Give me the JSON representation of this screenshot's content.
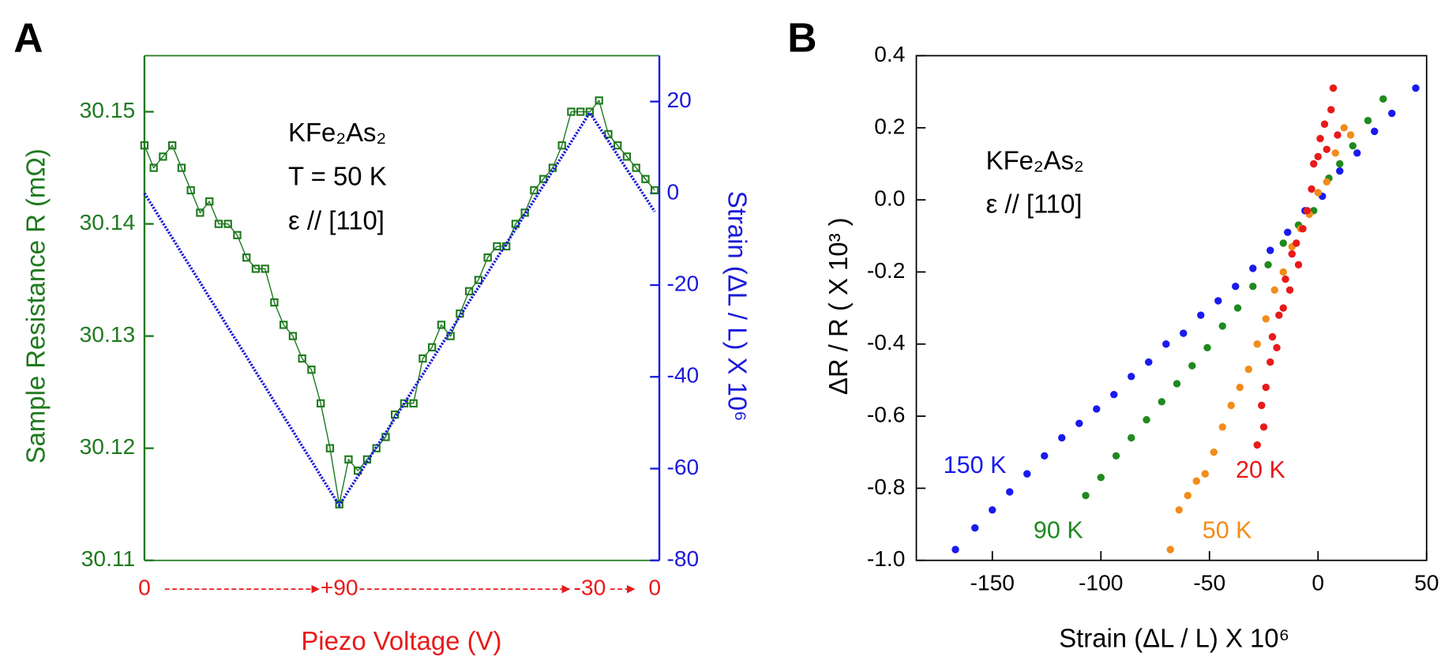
{
  "chart_data": [
    {
      "type": "line",
      "panel": "A",
      "ylabel": "Sample Resistance R (mΩ)",
      "y2label": "Strain (ΔL / L) X 10⁶",
      "xlabel": "Piezo Voltage (V)",
      "annotations": [
        "KFe₂As₂",
        "T = 50 K",
        "ε // [110]"
      ],
      "categories": [
        "0",
        null,
        null,
        null,
        null,
        null,
        null,
        null,
        null,
        null,
        null,
        null,
        null,
        null,
        null,
        null,
        null,
        null,
        null,
        null,
        null,
        "+90",
        null,
        null,
        null,
        null,
        null,
        null,
        null,
        null,
        null,
        null,
        null,
        null,
        null,
        null,
        null,
        null,
        null,
        null,
        null,
        null,
        null,
        null,
        null,
        null,
        null,
        null,
        "-30",
        null,
        null,
        null,
        null,
        null,
        null,
        "0"
      ],
      "series": [
        {
          "color": "#1f7a1f",
          "marker": "square",
          "values": [
            30.147,
            30.145,
            30.146,
            30.147,
            30.145,
            30.143,
            30.141,
            30.142,
            30.14,
            30.14,
            30.139,
            30.137,
            30.136,
            30.136,
            30.133,
            30.131,
            30.13,
            30.128,
            30.127,
            30.124,
            30.12,
            30.115,
            30.119,
            30.118,
            30.119,
            30.12,
            30.121,
            30.123,
            30.124,
            30.124,
            30.128,
            30.129,
            30.131,
            30.13,
            30.132,
            30.134,
            30.135,
            30.137,
            30.138,
            30.138,
            30.14,
            30.141,
            30.143,
            30.144,
            30.145,
            30.147,
            30.15,
            30.15,
            30.15,
            30.151,
            30.148,
            30.147,
            30.146,
            30.145,
            30.144,
            30.143
          ]
        },
        {
          "color": "#1a1adb",
          "axis": "y2",
          "dotted": true,
          "values": [
            0,
            -3.2,
            -6.5,
            -9.7,
            -13,
            -16.2,
            -19.4,
            -22.7,
            -25.9,
            -29.2,
            -32.4,
            -35.6,
            -38.9,
            -42.1,
            -45.4,
            -48.6,
            -51.8,
            -55.1,
            -58.3,
            -61.6,
            -64.8,
            -68,
            -64.8,
            -61.7,
            -58.5,
            -55.3,
            -52.2,
            -49,
            -45.8,
            -42.6,
            -39.5,
            -36.3,
            -33.1,
            -30,
            -26.8,
            -23.6,
            -20.5,
            -17.3,
            -14.1,
            -11,
            -7.8,
            -4.6,
            -1.5,
            1.7,
            4.9,
            8,
            11.2,
            14.4,
            17.6,
            14.5,
            11.4,
            8.3,
            5.2,
            2.2,
            -0.9,
            -4
          ]
        }
      ],
      "ylim": [
        30.11,
        30.155
      ],
      "yticks": [
        30.11,
        30.12,
        30.13,
        30.14,
        30.15
      ],
      "y2lim": [
        -80,
        30
      ],
      "y2ticks": [
        -80,
        -60,
        -40,
        -20,
        0,
        20
      ]
    },
    {
      "type": "scatter",
      "panel": "B",
      "xlabel": "Strain (ΔL / L) X 10⁶",
      "ylabel": "ΔR / R ( X 10³ )",
      "annotations": [
        "KFe₂As₂",
        "ε // [110]"
      ],
      "series": [
        {
          "name": "150 K",
          "color": "#1a1aee",
          "x": [
            -167,
            -158,
            -150,
            -142,
            -134,
            -126,
            -118,
            -110,
            -102,
            -94,
            -86,
            -78,
            -70,
            -62,
            -54,
            -46,
            -38,
            -30,
            -22,
            -14,
            -6,
            2,
            10,
            18,
            26,
            34,
            45
          ],
          "values": [
            -0.97,
            -0.91,
            -0.86,
            -0.81,
            -0.76,
            -0.71,
            -0.66,
            -0.62,
            -0.58,
            -0.54,
            -0.49,
            -0.45,
            -0.4,
            -0.37,
            -0.32,
            -0.28,
            -0.24,
            -0.19,
            -0.14,
            -0.09,
            -0.03,
            0.01,
            0.08,
            0.13,
            0.19,
            0.24,
            0.31
          ]
        },
        {
          "name": "90 K",
          "color": "#1f8a1f",
          "x": [
            -107,
            -100,
            -93,
            -86,
            -79,
            -72,
            -65,
            -58,
            -51,
            -44,
            -37,
            -30,
            -23,
            -16,
            -9,
            -2,
            5,
            10,
            16,
            23,
            30
          ],
          "values": [
            -0.82,
            -0.77,
            -0.71,
            -0.66,
            -0.61,
            -0.56,
            -0.51,
            -0.46,
            -0.41,
            -0.35,
            -0.3,
            -0.24,
            -0.18,
            -0.12,
            -0.07,
            -0.03,
            0.06,
            0.1,
            0.15,
            0.22,
            0.28
          ]
        },
        {
          "name": "50 K",
          "color": "#f28c1a",
          "x": [
            -68,
            -64,
            -60,
            -56,
            -52,
            -48,
            -44,
            -40,
            -36,
            -32,
            -28,
            -24,
            -20,
            -16,
            -12,
            -8,
            -4,
            0,
            4,
            8,
            12,
            15
          ],
          "values": [
            -0.97,
            -0.86,
            -0.82,
            -0.78,
            -0.76,
            -0.7,
            -0.63,
            -0.57,
            -0.52,
            -0.47,
            -0.4,
            -0.33,
            -0.25,
            -0.2,
            -0.13,
            -0.08,
            -0.04,
            0.02,
            0.05,
            0.13,
            0.2,
            0.18
          ]
        },
        {
          "name": "20 K",
          "color": "#e81a1a",
          "x": [
            -28,
            -26,
            -25,
            -24,
            -22,
            -21,
            -19,
            -18,
            -16,
            -15,
            -13,
            -12,
            -10,
            -9,
            -7,
            -5,
            -3,
            -2,
            0,
            1,
            3,
            4,
            6,
            7,
            9
          ],
          "values": [
            -0.68,
            -0.57,
            -0.63,
            -0.52,
            -0.45,
            -0.38,
            -0.41,
            -0.32,
            -0.3,
            -0.22,
            -0.25,
            -0.15,
            -0.12,
            -0.18,
            -0.08,
            -0.03,
            0.03,
            0.1,
            0.12,
            0.17,
            0.21,
            0.14,
            0.25,
            0.31,
            0.18
          ]
        }
      ],
      "xlim": [
        -185,
        50
      ],
      "xticks": [
        -150,
        -100,
        -50,
        0,
        50
      ],
      "ylim": [
        -1.0,
        0.4
      ],
      "yticks": [
        {
          "value": -1,
          "label": "-1.0"
        },
        -0.8,
        -0.6,
        -0.4,
        -0.2,
        {
          "value": 0,
          "label": "0.0"
        },
        0.2,
        0.4
      ]
    }
  ]
}
